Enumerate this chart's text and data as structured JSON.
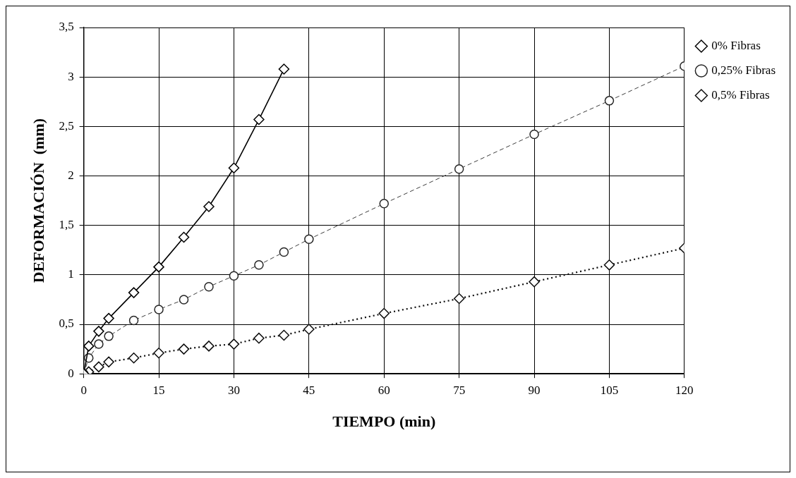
{
  "chart_data": {
    "type": "line",
    "xlabel": "TIEMPO (min)",
    "ylabel": "DEFORMACIÓN  (mm)",
    "xlim": [
      0,
      120
    ],
    "xticks": [
      0,
      15,
      30,
      45,
      60,
      75,
      90,
      105,
      120
    ],
    "ylim": [
      0,
      3.5
    ],
    "yticks": [
      0,
      {
        "value": 0.5,
        "label": "0,5"
      },
      1,
      {
        "value": 1.5,
        "label": "1,5"
      },
      2,
      {
        "value": 2.5,
        "label": "2,5"
      },
      3,
      {
        "value": 3.5,
        "label": "3,5"
      }
    ],
    "grid": true,
    "legend": "top right",
    "series": [
      {
        "name": "0% Fibras",
        "color": "#000000",
        "marker": "diamond",
        "line_style": "solid",
        "x": [
          0,
          1,
          3,
          5,
          10,
          15,
          20,
          25,
          30,
          35,
          40
        ],
        "values": [
          0,
          0.28,
          0.43,
          0.56,
          0.82,
          1.08,
          1.38,
          1.69,
          2.08,
          2.57,
          3.08
        ]
      },
      {
        "name": "0,25% Fibras",
        "color": "#262626",
        "marker": "circle",
        "line_style": "dashed",
        "x": [
          0,
          1,
          3,
          5,
          10,
          15,
          20,
          25,
          30,
          35,
          40,
          45,
          60,
          75,
          90,
          105,
          120
        ],
        "values": [
          0,
          0.16,
          0.3,
          0.38,
          0.54,
          0.65,
          0.75,
          0.88,
          0.99,
          1.1,
          1.23,
          1.36,
          1.72,
          2.07,
          2.42,
          2.76,
          3.11
        ]
      },
      {
        "name": "0,5% Fibras",
        "color": "#0d0d0d",
        "marker": "diamond",
        "line_style": "dotted",
        "x": [
          0,
          1,
          3,
          5,
          10,
          15,
          20,
          25,
          30,
          35,
          40,
          45,
          60,
          75,
          90,
          105,
          120
        ],
        "values": [
          0,
          0.02,
          0.07,
          0.12,
          0.16,
          0.21,
          0.25,
          0.28,
          0.3,
          0.36,
          0.39,
          0.45,
          0.61,
          0.76,
          0.93,
          1.1,
          1.27
        ]
      }
    ]
  }
}
